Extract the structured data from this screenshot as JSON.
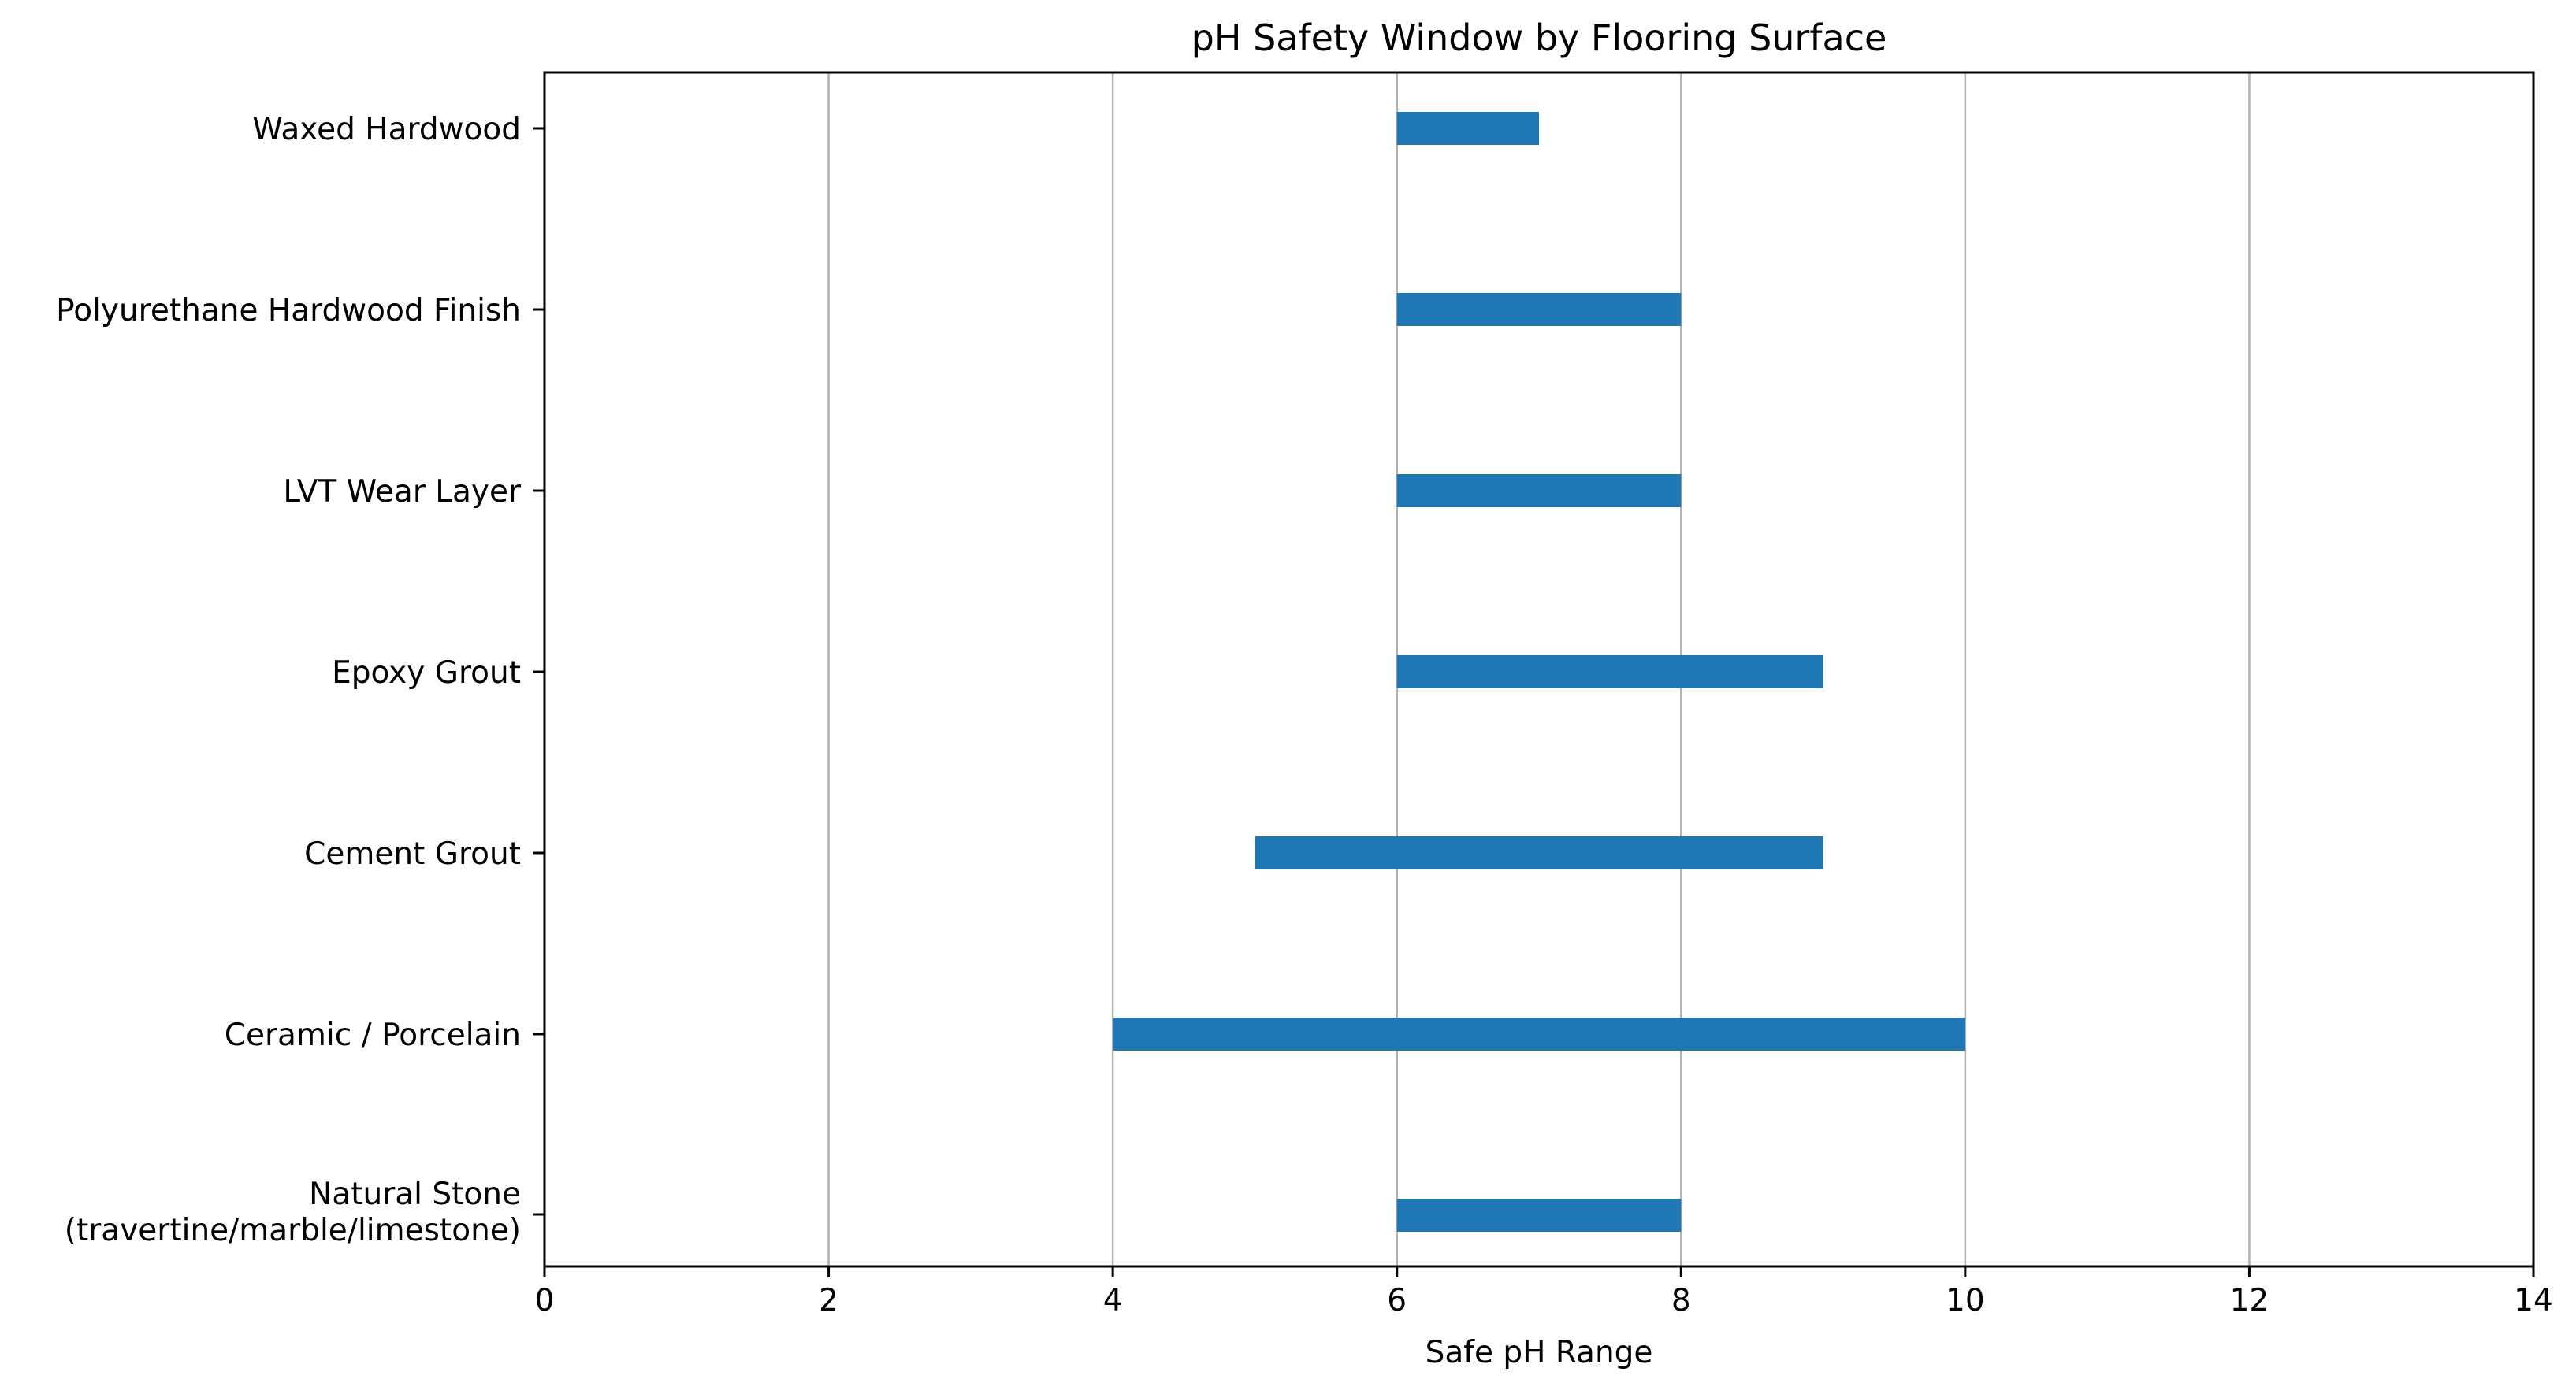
{
  "chart_data": {
    "type": "bar",
    "orientation": "horizontal-range",
    "title": "pH Safety Window by Flooring Surface",
    "xlabel": "Safe pH Range",
    "ylabel": "",
    "xlim": [
      0,
      14
    ],
    "xticks": [
      0,
      2,
      4,
      6,
      8,
      10,
      12,
      14
    ],
    "grid": "vertical",
    "bar_color": "#1f77b4",
    "categories": [
      "Waxed Hardwood",
      "Polyurethane Hardwood Finish",
      "LVT Wear Layer",
      "Epoxy Grout",
      "Cement Grout",
      "Ceramic / Porcelain",
      "Natural Stone\n(travertine/marble/limestone)"
    ],
    "ranges": [
      [
        6,
        7
      ],
      [
        6,
        8
      ],
      [
        6,
        8
      ],
      [
        6,
        9
      ],
      [
        5,
        9
      ],
      [
        4,
        10
      ],
      [
        6,
        8
      ]
    ]
  }
}
